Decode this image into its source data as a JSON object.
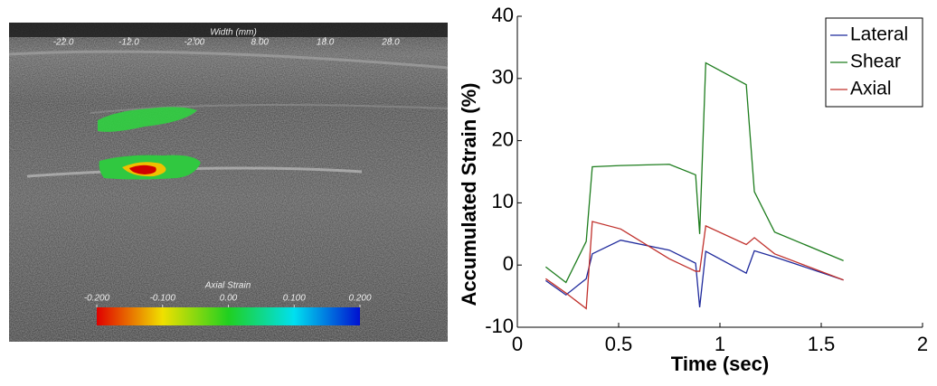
{
  "ultrasound": {
    "x_label": "Width (mm)",
    "xlim": [
      -30.3,
      36.7
    ],
    "xticks": [
      {
        "value": -22,
        "label": "-22.0"
      },
      {
        "value": -12,
        "label": "-12.0"
      },
      {
        "value": -2,
        "label": "-2.00"
      },
      {
        "value": 8,
        "label": "8.00"
      },
      {
        "value": 18,
        "label": "18.0"
      },
      {
        "value": 28,
        "label": "28.0"
      }
    ],
    "colorbar_label": "Axial Strain",
    "colorbar_lim": [
      -0.2,
      0.2
    ],
    "colorbar_ticks": [
      {
        "value": -0.2,
        "label": "-0.200"
      },
      {
        "value": -0.1,
        "label": "-0.100"
      },
      {
        "value": 0,
        "label": "0.00"
      },
      {
        "value": 0.1,
        "label": "0.100"
      },
      {
        "value": 0.2,
        "label": "0.200"
      }
    ]
  },
  "chart_data": {
    "type": "line",
    "x_label": "Time (sec)",
    "y_label": "Accumulated Strain (%)",
    "x": [
      0.14,
      0.24,
      0.34,
      0.37,
      0.51,
      0.75,
      0.88,
      0.9,
      0.93,
      1.13,
      1.17,
      1.27,
      1.61
    ],
    "series": [
      {
        "name": "Lateral",
        "color": "#1f2a9c",
        "values": [
          -2.5,
          -4.8,
          -2.2,
          1.8,
          4.0,
          2.4,
          0.3,
          -6.8,
          2.2,
          -1.3,
          2.3,
          1.3,
          -2.4
        ]
      },
      {
        "name": "Shear",
        "color": "#1e7d1e",
        "values": [
          -0.3,
          -2.8,
          3.8,
          15.8,
          16.0,
          16.2,
          14.5,
          5.0,
          32.5,
          29.0,
          11.8,
          5.3,
          0.7
        ]
      },
      {
        "name": "Axial",
        "color": "#c0302b",
        "values": [
          -2.2,
          -4.5,
          -7.0,
          7.0,
          5.8,
          1.0,
          -1.0,
          -1.0,
          6.3,
          3.3,
          4.4,
          1.8,
          -2.4
        ]
      }
    ],
    "xlim": [
      0,
      2
    ],
    "xticks": [
      0,
      0.5,
      1,
      1.5,
      2
    ],
    "ylim": [
      -10,
      40
    ],
    "yticks": [
      -10,
      0,
      10,
      20,
      30,
      40
    ],
    "grid": false,
    "legend": "upper right"
  }
}
